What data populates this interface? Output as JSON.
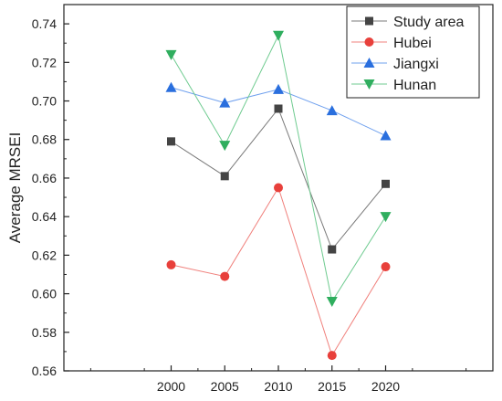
{
  "chart_data": {
    "type": "line",
    "title": "",
    "xlabel": "",
    "ylabel": "Average MRSEI",
    "x": [
      2000,
      2005,
      2010,
      2015,
      2020
    ],
    "xticks": [
      "2000",
      "2005",
      "2010",
      "2015",
      "2020"
    ],
    "xlim": [
      1990,
      2030
    ],
    "ylim": [
      0.56,
      0.75
    ],
    "yticks": [
      "0.56",
      "0.58",
      "0.60",
      "0.62",
      "0.64",
      "0.66",
      "0.68",
      "0.70",
      "0.72",
      "0.74"
    ],
    "grid": false,
    "legend_position": "top-right",
    "series": [
      {
        "name": "Study area",
        "marker": "square",
        "color": "#444444",
        "line_color": "#7a7a7a",
        "values": [
          0.679,
          0.661,
          0.696,
          0.623,
          0.657
        ]
      },
      {
        "name": "Hubei",
        "marker": "circle",
        "color": "#e8403b",
        "line_color": "#f0807c",
        "values": [
          0.615,
          0.609,
          0.655,
          0.568,
          0.614
        ]
      },
      {
        "name": "Jiangxi",
        "marker": "triangle-up",
        "color": "#2a6fde",
        "line_color": "#6fa0ee",
        "values": [
          0.707,
          0.699,
          0.706,
          0.695,
          0.682
        ]
      },
      {
        "name": "Hunan",
        "marker": "triangle-down",
        "color": "#2fae5e",
        "line_color": "#6fcb90",
        "values": [
          0.724,
          0.677,
          0.734,
          0.596,
          0.64
        ]
      }
    ]
  }
}
